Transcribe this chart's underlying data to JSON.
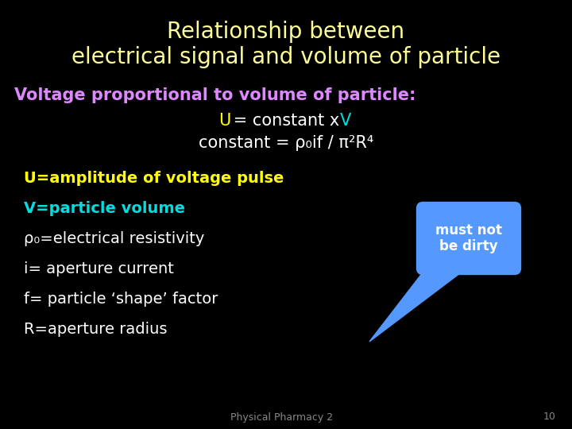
{
  "background_color": "#000000",
  "title_line1": "Relationship between",
  "title_line2": "electrical signal and volume of particle",
  "title_color": "#ffff99",
  "title_fontsize": 20,
  "subtitle_color": "#dd88ff",
  "subtitle_text": "Voltage proportional to volume of particle:",
  "subtitle_fontsize": 15,
  "eq_line2": "constant = ρ₀if / π²R⁴",
  "eq_color_white": "#ffffff",
  "eq_color_yellow": "#ffff00",
  "eq_color_cyan": "#00dddd",
  "eq_fontsize": 15,
  "bullet1_text": "U=amplitude of voltage pulse",
  "bullet1_color": "#ffff00",
  "bullet2_text": "V=particle volume",
  "bullet2_color": "#00dddd",
  "bullet3_rho": "ρ₀=electrical resistivity",
  "bullet4": "i= aperture current",
  "bullet5": "f= particle ‘shape’ factor",
  "bullet6": "R=aperture radius",
  "bullet_color_white": "#ffffff",
  "bullet_fontsize": 14,
  "callout_text": "must not\nbe dirty",
  "callout_bg": "#5599ff",
  "callout_text_color": "#ffffff",
  "footer_text": "Physical Pharmacy 2",
  "footer_page": "10",
  "footer_color": "#888888",
  "footer_fontsize": 9
}
